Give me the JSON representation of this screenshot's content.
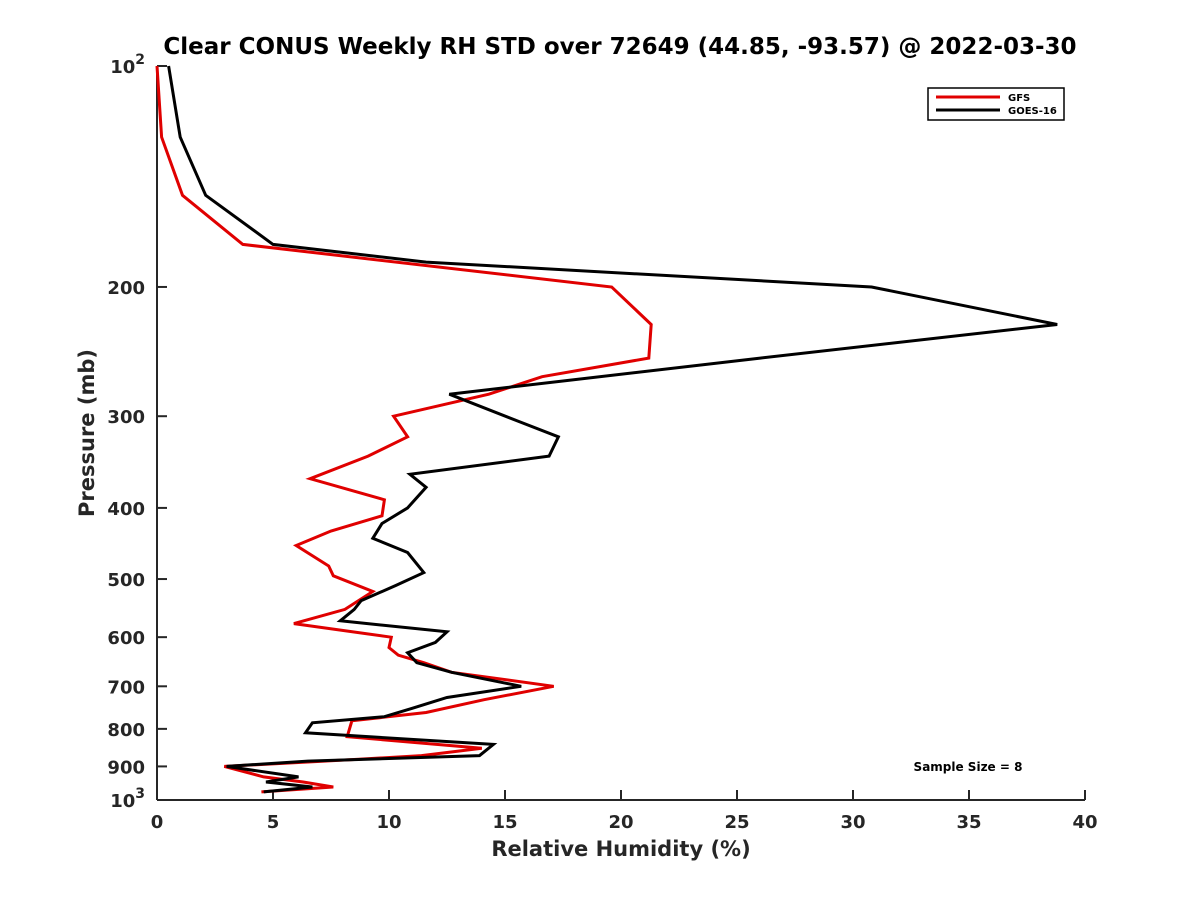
{
  "chart_data": {
    "type": "line",
    "orientation": "profile",
    "title": "Clear CONUS Weekly RH STD over 72649 (44.85, -93.57) @ 2022-03-30",
    "xlabel": "Relative Humidity (%)",
    "ylabel": "Pressure (mb)",
    "xlim": [
      0,
      40
    ],
    "ylim": [
      100,
      1000
    ],
    "y_scale": "log",
    "y_reversed": true,
    "grid": false,
    "legend_position": "top-right",
    "annotation": "Sample Size = 8",
    "x_ticks": [
      {
        "value": 0,
        "label": "0"
      },
      {
        "value": 5,
        "label": "5"
      },
      {
        "value": 10,
        "label": "10"
      },
      {
        "value": 15,
        "label": "15"
      },
      {
        "value": 20,
        "label": "20"
      },
      {
        "value": 25,
        "label": "25"
      },
      {
        "value": 30,
        "label": "30"
      },
      {
        "value": 35,
        "label": "35"
      },
      {
        "value": 40,
        "label": "40"
      }
    ],
    "y_ticks": [
      {
        "value": 100,
        "base": "10",
        "exp": "2"
      },
      {
        "value": 200,
        "label": "200"
      },
      {
        "value": 300,
        "label": "300"
      },
      {
        "value": 400,
        "label": "400"
      },
      {
        "value": 500,
        "label": "500"
      },
      {
        "value": 600,
        "label": "600"
      },
      {
        "value": 700,
        "label": "700"
      },
      {
        "value": 800,
        "label": "800"
      },
      {
        "value": 900,
        "label": "900"
      },
      {
        "value": 1000,
        "base": "10",
        "exp": "3"
      }
    ],
    "series": [
      {
        "name": "GFS",
        "color": "#e00000",
        "points": [
          [
            0.0,
            100
          ],
          [
            0.2,
            125
          ],
          [
            1.1,
            150
          ],
          [
            3.7,
            175
          ],
          [
            19.6,
            200
          ],
          [
            21.3,
            225
          ],
          [
            21.2,
            250
          ],
          [
            16.6,
            265
          ],
          [
            14.3,
            280
          ],
          [
            10.2,
            300
          ],
          [
            10.8,
            320
          ],
          [
            9.1,
            340
          ],
          [
            6.6,
            365
          ],
          [
            9.8,
            390
          ],
          [
            9.7,
            410
          ],
          [
            7.5,
            430
          ],
          [
            6.0,
            450
          ],
          [
            7.4,
            480
          ],
          [
            7.6,
            495
          ],
          [
            9.3,
            520
          ],
          [
            8.1,
            550
          ],
          [
            5.9,
            575
          ],
          [
            10.1,
            600
          ],
          [
            10.0,
            620
          ],
          [
            10.4,
            635
          ],
          [
            11.5,
            650
          ],
          [
            12.7,
            670
          ],
          [
            17.1,
            700
          ],
          [
            14.1,
            730
          ],
          [
            11.6,
            760
          ],
          [
            8.4,
            780
          ],
          [
            8.2,
            820
          ],
          [
            14.0,
            850
          ],
          [
            11.4,
            870
          ],
          [
            8.7,
            880
          ],
          [
            2.9,
            900
          ],
          [
            4.6,
            930
          ],
          [
            6.3,
            945
          ],
          [
            7.6,
            960
          ],
          [
            4.5,
            975
          ]
        ]
      },
      {
        "name": "GOES-16",
        "color": "#000000",
        "points": [
          [
            0.5,
            100
          ],
          [
            1.0,
            125
          ],
          [
            2.1,
            150
          ],
          [
            5.0,
            175
          ],
          [
            11.6,
            185
          ],
          [
            30.8,
            200
          ],
          [
            38.8,
            225
          ],
          [
            26.0,
            250
          ],
          [
            12.6,
            280
          ],
          [
            15.6,
            305
          ],
          [
            17.3,
            320
          ],
          [
            16.9,
            340
          ],
          [
            10.9,
            360
          ],
          [
            11.6,
            375
          ],
          [
            10.8,
            400
          ],
          [
            9.7,
            420
          ],
          [
            9.3,
            440
          ],
          [
            10.8,
            460
          ],
          [
            11.5,
            490
          ],
          [
            10.3,
            510
          ],
          [
            8.8,
            535
          ],
          [
            8.5,
            550
          ],
          [
            7.9,
            570
          ],
          [
            12.5,
            590
          ],
          [
            12.0,
            610
          ],
          [
            10.8,
            630
          ],
          [
            11.2,
            650
          ],
          [
            12.7,
            670
          ],
          [
            15.7,
            700
          ],
          [
            12.5,
            725
          ],
          [
            11.0,
            750
          ],
          [
            9.8,
            770
          ],
          [
            6.7,
            785
          ],
          [
            6.4,
            810
          ],
          [
            14.5,
            840
          ],
          [
            13.9,
            870
          ],
          [
            6.5,
            885
          ],
          [
            3.0,
            900
          ],
          [
            6.1,
            930
          ],
          [
            4.7,
            945
          ],
          [
            6.7,
            960
          ],
          [
            4.6,
            975
          ]
        ]
      }
    ]
  }
}
